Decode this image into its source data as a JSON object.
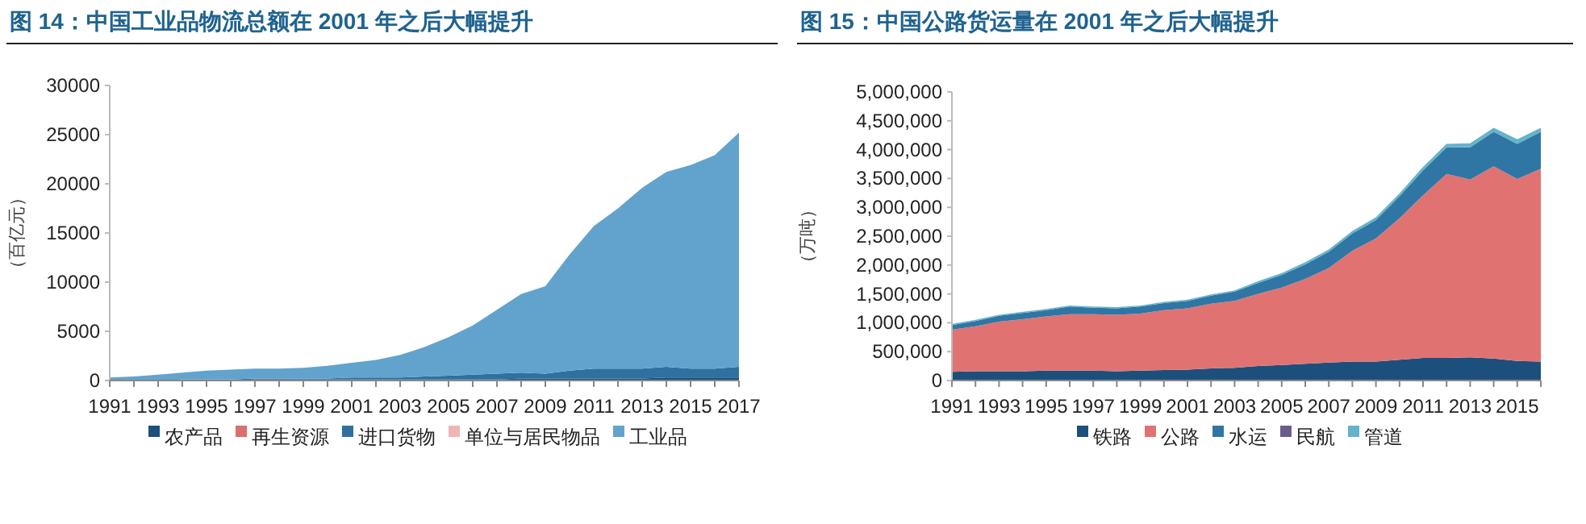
{
  "chart_data": [
    {
      "type": "area",
      "stacked": true,
      "title": "图 14：中国工业品物流总额在 2001 年之后大幅提升",
      "ylabel": "（百亿元）",
      "legend": "bottom",
      "x": [
        1991,
        1992,
        1993,
        1994,
        1995,
        1996,
        1997,
        1998,
        1999,
        2000,
        2001,
        2002,
        2003,
        2004,
        2005,
        2006,
        2007,
        2008,
        2009,
        2010,
        2011,
        2012,
        2013,
        2014,
        2015,
        2016,
        2017
      ],
      "xlim": [
        1991,
        2017
      ],
      "xticks": [
        1991,
        {
          "value": 1992,
          "label": null
        },
        1993,
        {
          "value": 1994,
          "label": null
        },
        1995,
        {
          "value": 1996,
          "label": null
        },
        1997,
        {
          "value": 1998,
          "label": null
        },
        1999,
        {
          "value": 2000,
          "label": null
        },
        2001,
        {
          "value": 2002,
          "label": null
        },
        2003,
        {
          "value": 2004,
          "label": null
        },
        2005,
        {
          "value": 2006,
          "label": null
        },
        2007,
        {
          "value": 2008,
          "label": null
        },
        2009,
        {
          "value": 2010,
          "label": null
        },
        2011,
        {
          "value": 2012,
          "label": null
        },
        2013,
        {
          "value": 2014,
          "label": null
        },
        2015,
        {
          "value": 2016,
          "label": null
        },
        2017
      ],
      "ylim": [
        0,
        30000
      ],
      "yticks": [
        0,
        5000,
        10000,
        15000,
        20000,
        25000,
        30000
      ],
      "series": [
        {
          "name": "农产品",
          "color": "#1d4f7c",
          "values": [
            0,
            0,
            0,
            0,
            0,
            0,
            100,
            100,
            100,
            100,
            100,
            100,
            100,
            100,
            100,
            100,
            100,
            200,
            200,
            200,
            200,
            200,
            200,
            300,
            300,
            300,
            300
          ]
        },
        {
          "name": "再生资源",
          "color": "#d9706e",
          "values": [
            null,
            null,
            null,
            null,
            null,
            null,
            null,
            null,
            null,
            null,
            null,
            null,
            null,
            null,
            null,
            null,
            null,
            null,
            null,
            null,
            null,
            null,
            null,
            null,
            null,
            null,
            null
          ]
        },
        {
          "name": "进口货物",
          "color": "#2f70a0",
          "values": [
            0,
            0,
            0,
            100,
            100,
            100,
            100,
            100,
            100,
            100,
            200,
            200,
            200,
            300,
            400,
            500,
            600,
            600,
            500,
            800,
            1000,
            1000,
            1000,
            1100,
            900,
            900,
            1100
          ]
        },
        {
          "name": "单位与居民物品",
          "color": "#f0b4b4",
          "values": [
            null,
            null,
            null,
            null,
            null,
            null,
            null,
            null,
            null,
            null,
            null,
            null,
            null,
            null,
            null,
            null,
            null,
            null,
            null,
            null,
            null,
            null,
            null,
            null,
            null,
            null,
            null
          ]
        },
        {
          "name": "工业品",
          "color": "#62a3cd",
          "values": [
            300,
            400,
            600,
            700,
            900,
            1000,
            1000,
            1000,
            1100,
            1300,
            1500,
            1800,
            2300,
            3000,
            3900,
            5000,
            6500,
            8000,
            8900,
            11800,
            14500,
            16300,
            18400,
            19800,
            20700,
            21700,
            23800
          ]
        }
      ]
    },
    {
      "type": "area",
      "stacked": true,
      "title": "图 15：中国公路货运量在 2001 年之后大幅提升",
      "ylabel": "（万吨）",
      "legend": "bottom",
      "x": [
        1991,
        1992,
        1993,
        1994,
        1995,
        1996,
        1997,
        1998,
        1999,
        2000,
        2001,
        2002,
        2003,
        2004,
        2005,
        2006,
        2007,
        2008,
        2009,
        2010,
        2011,
        2012,
        2013,
        2014,
        2015,
        2016
      ],
      "xlim": [
        1991,
        2016
      ],
      "xticks": [
        1991,
        {
          "value": 1992,
          "label": null
        },
        1993,
        {
          "value": 1994,
          "label": null
        },
        1995,
        {
          "value": 1996,
          "label": null
        },
        1997,
        {
          "value": 1998,
          "label": null
        },
        1999,
        {
          "value": 2000,
          "label": null
        },
        2001,
        {
          "value": 2002,
          "label": null
        },
        2003,
        {
          "value": 2004,
          "label": null
        },
        2005,
        {
          "value": 2006,
          "label": null
        },
        2007,
        {
          "value": 2008,
          "label": null
        },
        2009,
        {
          "value": 2010,
          "label": null
        },
        2011,
        {
          "value": 2012,
          "label": null
        },
        2013,
        {
          "value": 2014,
          "label": null
        },
        2015,
        {
          "value": 2016,
          "label": null
        }
      ],
      "ylim": [
        0,
        5000000
      ],
      "yticks": [
        0,
        {
          "value": 500000,
          "label": "500,000"
        },
        {
          "value": 1000000,
          "label": "1,000,000"
        },
        {
          "value": 1500000,
          "label": "1,500,000"
        },
        {
          "value": 2000000,
          "label": "2,000,000"
        },
        {
          "value": 2500000,
          "label": "2,500,000"
        },
        {
          "value": 3000000,
          "label": "3,000,000"
        },
        {
          "value": 3500000,
          "label": "3,500,000"
        },
        {
          "value": 4000000,
          "label": "4,000,000"
        },
        {
          "value": 4500000,
          "label": "4,500,000"
        },
        {
          "value": 5000000,
          "label": "5,000,000"
        }
      ],
      "series": [
        {
          "name": "铁路",
          "color": "#1d4f7c",
          "values": [
            150000,
            160000,
            160000,
            160000,
            170000,
            170000,
            170000,
            160000,
            170000,
            180000,
            190000,
            210000,
            220000,
            250000,
            270000,
            290000,
            310000,
            330000,
            330000,
            360000,
            390000,
            390000,
            400000,
            380000,
            340000,
            330000
          ]
        },
        {
          "name": "公路",
          "color": "#e07372",
          "values": [
            730000,
            780000,
            860000,
            900000,
            940000,
            980000,
            980000,
            980000,
            990000,
            1040000,
            1060000,
            1120000,
            1160000,
            1250000,
            1340000,
            1470000,
            1640000,
            1920000,
            2130000,
            2450000,
            2820000,
            3190000,
            3080000,
            3330000,
            3150000,
            3340000
          ]
        },
        {
          "name": "水运",
          "color": "#2f76a4",
          "values": [
            80000,
            90000,
            100000,
            110000,
            110000,
            130000,
            110000,
            110000,
            120000,
            120000,
            130000,
            140000,
            160000,
            190000,
            220000,
            250000,
            280000,
            300000,
            320000,
            380000,
            430000,
            460000,
            560000,
            600000,
            610000,
            640000
          ]
        },
        {
          "name": "民航",
          "color": "#6b5b8c",
          "values": [
            null,
            null,
            null,
            null,
            null,
            null,
            null,
            null,
            null,
            null,
            null,
            null,
            null,
            null,
            null,
            null,
            null,
            null,
            null,
            null,
            null,
            null,
            null,
            null,
            null,
            null
          ]
        },
        {
          "name": "管道",
          "color": "#63b3cb",
          "values": [
            20000,
            20000,
            20000,
            20000,
            20000,
            20000,
            20000,
            20000,
            20000,
            20000,
            20000,
            20000,
            20000,
            30000,
            30000,
            40000,
            40000,
            40000,
            50000,
            50000,
            60000,
            60000,
            70000,
            70000,
            80000,
            70000
          ]
        }
      ]
    }
  ]
}
